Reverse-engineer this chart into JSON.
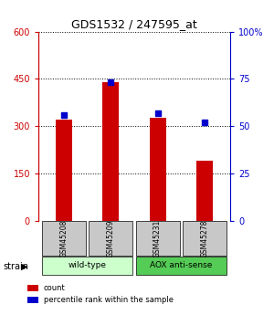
{
  "title": "GDS1532 / 247595_at",
  "samples": [
    "GSM45208",
    "GSM45209",
    "GSM45231",
    "GSM45278"
  ],
  "counts": [
    320,
    440,
    325,
    190
  ],
  "percentiles": [
    56,
    73,
    57,
    52
  ],
  "left_ylim": [
    0,
    600
  ],
  "right_ylim": [
    0,
    100
  ],
  "left_ticks": [
    0,
    150,
    300,
    450,
    600
  ],
  "right_ticks": [
    0,
    25,
    50,
    75,
    100
  ],
  "right_tick_labels": [
    "0",
    "25",
    "50",
    "75",
    "100%"
  ],
  "bar_color": "#cc0000",
  "dot_color": "#0000cc",
  "strain_groups": [
    {
      "label": "wild-type",
      "indices": [
        0,
        1
      ],
      "color": "#ccffcc"
    },
    {
      "label": "AOX anti-sense",
      "indices": [
        2,
        3
      ],
      "color": "#55cc55"
    }
  ],
  "legend_items": [
    {
      "color": "#cc0000",
      "label": "count"
    },
    {
      "color": "#0000cc",
      "label": "percentile rank within the sample"
    }
  ],
  "strain_label": "strain",
  "left_axis_color": "#cc0000",
  "right_axis_color": "#0000cc",
  "sample_box_color": "#c8c8c8",
  "bar_width": 0.35
}
